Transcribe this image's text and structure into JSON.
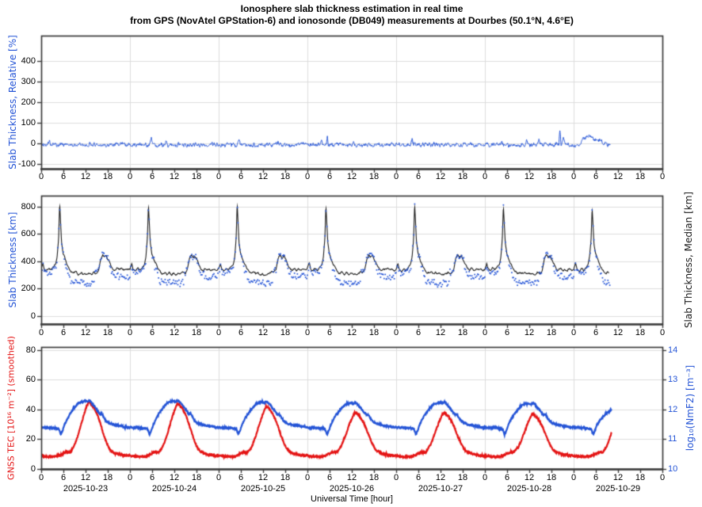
{
  "title": {
    "line1": "Ionosphere slab thickness estimation in real time",
    "line2": "from GPS (NovAtel GPStation-6) and ionosonde (DB049) measurements at Dourbes (50.1°N, 4.6°E)"
  },
  "x_axis": {
    "label": "Universal Time [hour]",
    "t_start_hour": 0,
    "t_end_hour": 168,
    "tick_step_hours": 6,
    "hour_tick_labels": [
      "0",
      "6",
      "12",
      "18",
      "0",
      "6",
      "12",
      "18",
      "0",
      "6",
      "12",
      "18",
      "0",
      "6",
      "12",
      "18",
      "0",
      "6",
      "12",
      "18",
      "0",
      "6",
      "12",
      "18",
      "0",
      "6",
      "12",
      "18",
      "0"
    ],
    "dates": [
      "2025-10-23",
      "2025-10-24",
      "2025-10-25",
      "2025-10-26",
      "2025-10-27",
      "2025-10-28",
      "2025-10-29"
    ],
    "day_gridlines_every_hours": 24
  },
  "colors": {
    "blue": "#2454d6",
    "red": "#e41414",
    "black": "#1a1a1a",
    "grid": "#dcdcdc",
    "frame": "#3c3c3c"
  },
  "chart_data": [
    {
      "type": "line",
      "name": "relative-slab-thickness-panel",
      "ylabel_left": "Slab Thickness, Relative [%]",
      "ylim": [
        -125,
        525
      ],
      "yticks_left": [
        -100,
        0,
        100,
        200,
        300,
        400
      ],
      "series": [
        {
          "name": "slab-thickness-relative-percent",
          "color": "blue",
          "baseline": -8,
          "noise_amp": 14,
          "t_end": 154,
          "sample_step_h": 0.04,
          "gaps": [
            [
              37.8,
              38.15
            ]
          ],
          "spikes": [
            [
              2.2,
              20,
              0.4
            ],
            [
              13.1,
              12,
              0.3
            ],
            [
              29.8,
              28,
              0.4
            ],
            [
              33.8,
              22,
              0.35
            ],
            [
              46.2,
              14,
              0.3
            ],
            [
              53.5,
              22,
              0.35
            ],
            [
              64.1,
              14,
              0.3
            ],
            [
              75.8,
              24,
              0.4
            ],
            [
              77.4,
              50,
              0.25
            ],
            [
              84.5,
              16,
              0.3
            ],
            [
              100.3,
              28,
              0.4
            ],
            [
              106.2,
              16,
              0.3
            ],
            [
              124.6,
              20,
              0.35
            ],
            [
              131.3,
              30,
              0.45
            ],
            [
              134.6,
              26,
              0.4
            ],
            [
              140.3,
              85,
              0.3
            ],
            [
              141.2,
              34,
              0.5
            ],
            [
              146.6,
              36,
              0.9
            ],
            [
              147.6,
              44,
              0.9
            ],
            [
              148.6,
              40,
              0.9
            ],
            [
              149.7,
              33,
              0.9
            ],
            [
              150.8,
              26,
              0.9
            ],
            [
              151.6,
              14,
              0.6
            ]
          ]
        }
      ]
    },
    {
      "type": "line+scatter",
      "name": "slab-thickness-panel",
      "ylabel_left": "Slab Thickness [km]",
      "ylabel_right": "Slab Thickness, Median [km]",
      "ylim": [
        -60,
        880
      ],
      "yticks_left": [
        0,
        200,
        400,
        600,
        800
      ],
      "median_line": {
        "name": "slab-thickness-median-km",
        "color": "black",
        "t_end": 153.6,
        "sample_step_h": 0.08,
        "noise_amp": 7,
        "peak_threshold": 460,
        "day_peaks_km": [
          820,
          812,
          822,
          800,
          818,
          808,
          790
        ],
        "day_keypoints": [
          [
            0,
            345
          ],
          [
            0.5,
            385
          ],
          [
            0.9,
            340
          ],
          [
            1.5,
            330
          ],
          [
            2.1,
            350
          ],
          [
            2.7,
            335
          ],
          [
            3.3,
            355
          ],
          [
            3.9,
            375
          ],
          [
            4.3,
            430
          ],
          [
            4.7,
            560
          ],
          [
            5,
            820
          ],
          [
            5.25,
            680
          ],
          [
            5.5,
            540
          ],
          [
            5.9,
            460
          ],
          [
            6.3,
            430
          ],
          [
            6.9,
            385
          ],
          [
            7.5,
            350
          ],
          [
            8.2,
            320
          ],
          [
            8.8,
            310
          ],
          [
            9.4,
            322
          ],
          [
            10,
            306
          ],
          [
            10.6,
            318
          ],
          [
            11.2,
            302
          ],
          [
            11.8,
            312
          ],
          [
            12.4,
            300
          ],
          [
            13,
            310
          ],
          [
            13.6,
            304
          ],
          [
            14.2,
            318
          ],
          [
            14.9,
            312
          ],
          [
            15.5,
            335
          ],
          [
            16.1,
            420
          ],
          [
            16.6,
            445
          ],
          [
            17.1,
            425
          ],
          [
            17.6,
            440
          ],
          [
            18.1,
            410
          ],
          [
            18.7,
            375
          ],
          [
            19.3,
            345
          ],
          [
            19.9,
            332
          ],
          [
            20.5,
            348
          ],
          [
            21.1,
            334
          ],
          [
            21.7,
            342
          ],
          [
            22.3,
            332
          ],
          [
            22.9,
            340
          ],
          [
            23.5,
            336
          ],
          [
            24,
            345
          ]
        ]
      },
      "scatter": {
        "name": "slab-thickness-measured-km",
        "color": "blue",
        "t_end": 153.8,
        "interval_h": 0.25,
        "scatter_amp_km": 23,
        "offset_from_median_by_hour": [
          [
            0,
            -20
          ],
          [
            4.3,
            -5
          ],
          [
            6.5,
            -40
          ],
          [
            7.5,
            -68
          ],
          [
            14.5,
            5
          ],
          [
            18.5,
            -30
          ],
          [
            20,
            -50
          ]
        ]
      }
    },
    {
      "type": "line",
      "name": "tec-nmf2-panel",
      "ylabel_left": "GNSS TEC [10¹⁶ m⁻²] (smoothed)",
      "ylabel_right": "log₁₀(NmF2) [m⁻³]",
      "ylim_left": [
        0,
        82
      ],
      "yticks_left": [
        0,
        20,
        40,
        60,
        80
      ],
      "yticks_right": [
        10,
        11,
        12,
        13,
        14
      ],
      "right_axis_mapping": "right = 10 + left/20",
      "series": [
        {
          "name": "gnss-tec-smoothed",
          "color": "red",
          "t_end": 154.3,
          "sample_step_h": 0.05,
          "width": 2.2,
          "noise_amp": 0.5,
          "peak_threshold": 11,
          "day_peaks": [
            45,
            44,
            42,
            38,
            38,
            37,
            44
          ],
          "day_keypoints": [
            [
              0,
              9
            ],
            [
              1,
              8.6
            ],
            [
              2,
              8.3
            ],
            [
              3,
              8.2
            ],
            [
              4,
              8.4
            ],
            [
              5,
              9
            ],
            [
              5.8,
              10.2
            ],
            [
              6.5,
              11
            ],
            [
              7.2,
              11.3
            ],
            [
              7.8,
              11
            ],
            [
              8.5,
              13.5
            ],
            [
              9.2,
              17
            ],
            [
              10,
              23
            ],
            [
              10.8,
              30
            ],
            [
              11.5,
              36
            ],
            [
              12.2,
              41.5
            ],
            [
              12.8,
              45
            ],
            [
              13.4,
              44
            ],
            [
              14.2,
              41.5
            ],
            [
              15,
              37.5
            ],
            [
              15.8,
              32
            ],
            [
              16.6,
              25.5
            ],
            [
              17.4,
              19.5
            ],
            [
              18.2,
              14.5
            ],
            [
              19,
              12
            ],
            [
              19.8,
              10.8
            ],
            [
              20.6,
              10.1
            ],
            [
              21.4,
              9.7
            ],
            [
              22.2,
              9.3
            ],
            [
              23,
              9.1
            ],
            [
              24,
              9
            ]
          ]
        },
        {
          "name": "log10-nmf2",
          "color": "blue",
          "t_end": 154.3,
          "sample_step_h": 0.05,
          "width": 2.2,
          "noise_amp": 0.4,
          "peak_threshold": 30,
          "day_peaks": [
            46,
            46,
            45.3,
            44.6,
            45,
            44.3,
            41
          ],
          "day_keypoints": [
            [
              0,
              27.9
            ],
            [
              1.5,
              27.8
            ],
            [
              3,
              27.5
            ],
            [
              4.2,
              27.2
            ],
            [
              4.8,
              26.8
            ],
            [
              5.3,
              23.3
            ],
            [
              5.8,
              25.8
            ],
            [
              6.3,
              29.5
            ],
            [
              7,
              33.5
            ],
            [
              7.8,
              37
            ],
            [
              8.6,
              40
            ],
            [
              9.4,
              42.5
            ],
            [
              10.2,
              44.5
            ],
            [
              11,
              45.3
            ],
            [
              11.8,
              45.8
            ],
            [
              12.4,
              45.2
            ],
            [
              13,
              46
            ],
            [
              13.6,
              44.8
            ],
            [
              14.3,
              42.5
            ],
            [
              15,
              40
            ],
            [
              15.6,
              38
            ],
            [
              16,
              36.8
            ],
            [
              16.4,
              37.3
            ],
            [
              17,
              34.5
            ],
            [
              17.7,
              32
            ],
            [
              18.4,
              30.8
            ],
            [
              19.2,
              30
            ],
            [
              20,
              29.5
            ],
            [
              21,
              29.1
            ],
            [
              22,
              28.6
            ],
            [
              23,
              28.2
            ],
            [
              24,
              27.9
            ]
          ]
        }
      ]
    }
  ]
}
